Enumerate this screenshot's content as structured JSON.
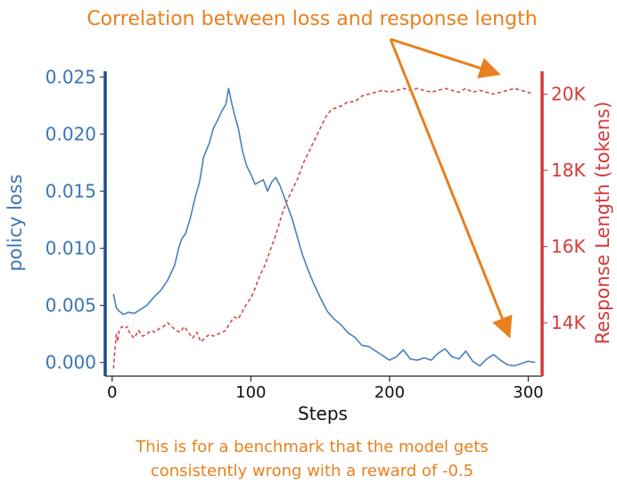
{
  "colors": {
    "loss": "#4a80bd",
    "length": "#d54a4a",
    "left_axis": "#1f4f82",
    "right_axis": "#d53a3a",
    "annotation": "#e8801f"
  },
  "chart_data": {
    "type": "line",
    "title": "Correlation between loss and response length",
    "xlabel": "Steps",
    "ylabel_left": "policy loss",
    "ylabel_right": "Response Length (tokens)",
    "xlim": [
      -5,
      310
    ],
    "ylim_left": [
      -0.0012,
      0.0255
    ],
    "ylim_right": [
      12600,
      20600
    ],
    "x_ticks": [
      0,
      100,
      200,
      300
    ],
    "x_tick_labels": [
      "0",
      "100",
      "200",
      "300"
    ],
    "y_left_ticks": [
      0.0,
      0.005,
      0.01,
      0.015,
      0.02,
      0.025
    ],
    "y_left_tick_labels": [
      "0.000",
      "0.005",
      "0.010",
      "0.015",
      "0.020",
      "0.025"
    ],
    "y_right_ticks": [
      14000,
      16000,
      18000,
      20000
    ],
    "y_right_tick_labels": [
      "14K",
      "16K",
      "18K",
      "20K"
    ],
    "grid": false,
    "series": [
      {
        "name": "policy loss",
        "axis": "left",
        "style": "solid",
        "x": [
          1,
          3,
          5,
          8,
          12,
          16,
          20,
          25,
          30,
          35,
          40,
          45,
          48,
          50,
          53,
          56,
          60,
          63,
          66,
          70,
          73,
          76,
          79,
          82,
          84,
          86,
          88,
          91,
          94,
          97,
          100,
          103,
          106,
          109,
          112,
          115,
          118,
          121,
          124,
          127,
          130,
          133,
          137,
          141,
          145,
          150,
          155,
          160,
          165,
          170,
          175,
          180,
          185,
          190,
          195,
          200,
          205,
          210,
          215,
          220,
          225,
          230,
          235,
          240,
          245,
          250,
          255,
          260,
          265,
          270,
          275,
          280,
          285,
          290,
          295,
          300,
          305
        ],
        "y": [
          0.006,
          0.0048,
          0.0045,
          0.0042,
          0.0044,
          0.0043,
          0.0046,
          0.005,
          0.0057,
          0.0063,
          0.0072,
          0.0085,
          0.01,
          0.0108,
          0.0113,
          0.0125,
          0.0145,
          0.0158,
          0.018,
          0.0192,
          0.0205,
          0.0212,
          0.022,
          0.0226,
          0.024,
          0.0228,
          0.0218,
          0.0205,
          0.0185,
          0.0172,
          0.0165,
          0.0156,
          0.0158,
          0.016,
          0.015,
          0.0158,
          0.0162,
          0.0155,
          0.0145,
          0.0135,
          0.0125,
          0.0112,
          0.0095,
          0.0082,
          0.007,
          0.0057,
          0.0045,
          0.0038,
          0.0033,
          0.0026,
          0.0022,
          0.0015,
          0.0014,
          0.001,
          0.0006,
          0.0002,
          0.0005,
          0.0011,
          0.0003,
          0.0002,
          0.0004,
          0.0002,
          0.0008,
          0.0012,
          0.0005,
          0.0003,
          0.001,
          0.0001,
          -0.0003,
          0.0003,
          0.0007,
          0.0002,
          -0.0002,
          -0.0003,
          -0.0001,
          0.0001,
          0.0
        ]
      },
      {
        "name": "Response Length",
        "axis": "right",
        "style": "dashed",
        "x": [
          1,
          2,
          3,
          4,
          5,
          7,
          9,
          11,
          13,
          16,
          19,
          22,
          25,
          28,
          31,
          34,
          37,
          40,
          43,
          46,
          49,
          52,
          55,
          58,
          61,
          64,
          67,
          70,
          73,
          76,
          79,
          82,
          85,
          88,
          91,
          94,
          97,
          100,
          103,
          106,
          110,
          114,
          118,
          122,
          126,
          130,
          134,
          138,
          142,
          146,
          150,
          154,
          158,
          162,
          166,
          170,
          175,
          180,
          185,
          190,
          195,
          200,
          205,
          210,
          215,
          220,
          225,
          230,
          235,
          240,
          245,
          250,
          255,
          260,
          265,
          270,
          275,
          280,
          285,
          290,
          295,
          300,
          303
        ],
        "y": [
          12800,
          13300,
          13700,
          13500,
          13800,
          13900,
          13850,
          13900,
          13700,
          13600,
          13800,
          13650,
          13700,
          13800,
          13750,
          13850,
          13900,
          14000,
          13900,
          13800,
          13750,
          13900,
          13750,
          13600,
          13750,
          13500,
          13600,
          13700,
          13650,
          13700,
          13750,
          13800,
          14000,
          14150,
          14100,
          14300,
          14500,
          14650,
          14900,
          15200,
          15500,
          15900,
          16300,
          16800,
          17200,
          17500,
          17800,
          18200,
          18500,
          18800,
          19100,
          19400,
          19600,
          19650,
          19700,
          19800,
          19800,
          19950,
          20000,
          20050,
          20100,
          20050,
          20100,
          20150,
          20100,
          20150,
          20100,
          20050,
          20100,
          20150,
          20100,
          20050,
          20150,
          20050,
          20100,
          20050,
          20000,
          20050,
          20100,
          20150,
          20100,
          20050,
          20000
        ]
      }
    ],
    "annotations": [
      "This is for a benchmark that the model gets",
      "consistently wrong with a reward of -0.5"
    ]
  }
}
